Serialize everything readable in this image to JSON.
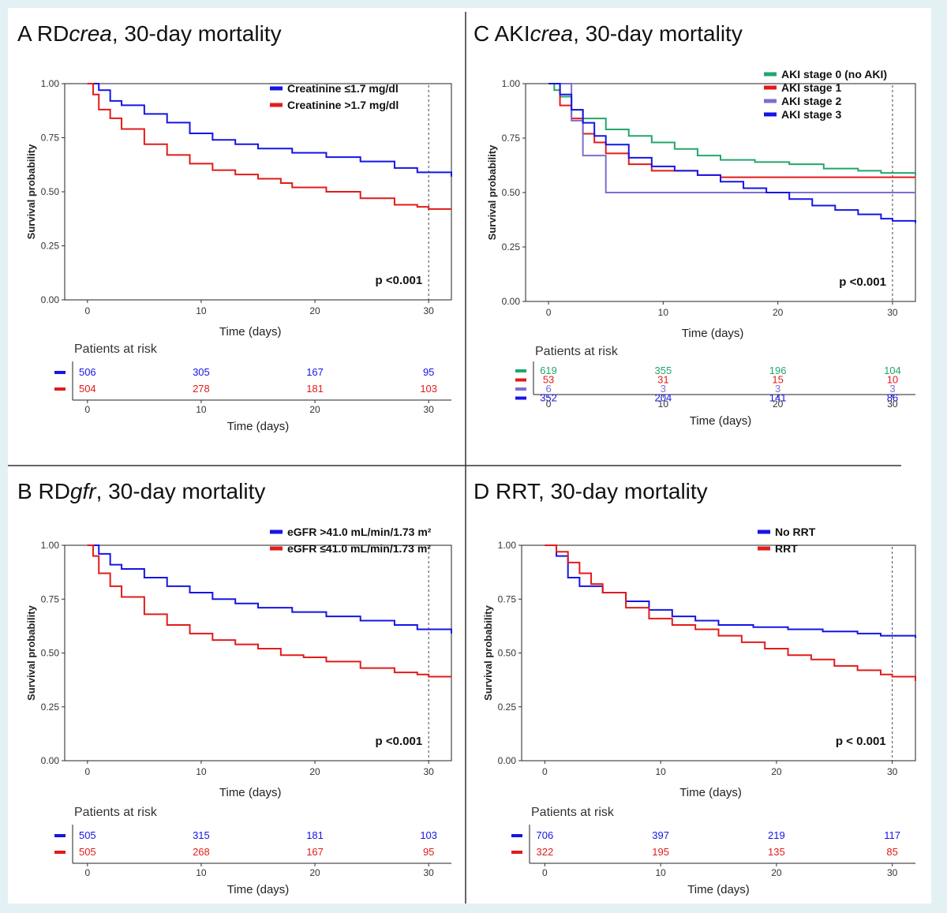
{
  "colors": {
    "blue": "#1515e6",
    "red": "#e21b1b",
    "green": "#23a66b",
    "purple": "#7b6fcf"
  },
  "chart_data": [
    {
      "panel": "A",
      "type": "line",
      "title_prefix": "RD",
      "title_italic": "crea",
      "title_suffix": ", 30-day mortality",
      "xlabel": "Time (days)",
      "ylabel": "Survival probability",
      "xlim": [
        -2,
        32
      ],
      "ylim": [
        0,
        1
      ],
      "xticks": [
        "0",
        "10",
        "20",
        "30"
      ],
      "yticks": [
        "0.00",
        "0.25",
        "0.50",
        "0.75",
        "1.00"
      ],
      "cutoff_day": 30,
      "p_value": "p <0.001",
      "legend_position": "top-right",
      "series": [
        {
          "name": "Creatinine ≤1.7 mg/dl",
          "color": "#1515e6",
          "points": [
            [
              0,
              1.0
            ],
            [
              1,
              0.97
            ],
            [
              2,
              0.92
            ],
            [
              3,
              0.9
            ],
            [
              5,
              0.86
            ],
            [
              7,
              0.82
            ],
            [
              9,
              0.77
            ],
            [
              11,
              0.74
            ],
            [
              13,
              0.72
            ],
            [
              15,
              0.7
            ],
            [
              18,
              0.68
            ],
            [
              21,
              0.66
            ],
            [
              24,
              0.64
            ],
            [
              27,
              0.61
            ],
            [
              29,
              0.59
            ],
            [
              32,
              0.57
            ]
          ]
        },
        {
          "name": "Creatinine >1.7 mg/dl",
          "color": "#e21b1b",
          "points": [
            [
              0,
              1.0
            ],
            [
              0.5,
              0.95
            ],
            [
              1,
              0.88
            ],
            [
              2,
              0.84
            ],
            [
              3,
              0.79
            ],
            [
              5,
              0.72
            ],
            [
              7,
              0.67
            ],
            [
              9,
              0.63
            ],
            [
              11,
              0.6
            ],
            [
              13,
              0.58
            ],
            [
              15,
              0.56
            ],
            [
              17,
              0.54
            ],
            [
              18,
              0.52
            ],
            [
              21,
              0.5
            ],
            [
              24,
              0.47
            ],
            [
              27,
              0.44
            ],
            [
              29,
              0.43
            ],
            [
              30,
              0.42
            ],
            [
              32,
              0.42
            ]
          ]
        }
      ],
      "risk_table": {
        "title": "Patients at risk",
        "xlabel": "Time (days)",
        "rows": [
          {
            "color": "#1515e6",
            "values": [
              "506",
              "305",
              "167",
              "95"
            ]
          },
          {
            "color": "#e21b1b",
            "values": [
              "504",
              "278",
              "181",
              "103"
            ]
          }
        ]
      }
    },
    {
      "panel": "B",
      "type": "line",
      "title_prefix": "RD",
      "title_italic": "gfr",
      "title_suffix": ", 30-day mortality",
      "xlabel": "Time (days)",
      "ylabel": "Survival probability",
      "xlim": [
        -2,
        32
      ],
      "ylim": [
        0,
        1
      ],
      "xticks": [
        "0",
        "10",
        "20",
        "30"
      ],
      "yticks": [
        "0.00",
        "0.25",
        "0.50",
        "0.75",
        "1.00"
      ],
      "cutoff_day": 30,
      "p_value": "p <0.001",
      "legend_position": "top-right",
      "series": [
        {
          "name": "eGFR >41.0 mL/min/1.73 m²",
          "color": "#1515e6",
          "points": [
            [
              0,
              1.0
            ],
            [
              1,
              0.96
            ],
            [
              2,
              0.91
            ],
            [
              3,
              0.89
            ],
            [
              5,
              0.85
            ],
            [
              7,
              0.81
            ],
            [
              9,
              0.78
            ],
            [
              11,
              0.75
            ],
            [
              13,
              0.73
            ],
            [
              15,
              0.71
            ],
            [
              18,
              0.69
            ],
            [
              21,
              0.67
            ],
            [
              24,
              0.65
            ],
            [
              27,
              0.63
            ],
            [
              29,
              0.61
            ],
            [
              32,
              0.59
            ]
          ]
        },
        {
          "name": "eGFR ≤41.0 mL/min/1.73 m²",
          "color": "#e21b1b",
          "points": [
            [
              0,
              1.0
            ],
            [
              0.5,
              0.95
            ],
            [
              1,
              0.87
            ],
            [
              2,
              0.81
            ],
            [
              3,
              0.76
            ],
            [
              5,
              0.68
            ],
            [
              7,
              0.63
            ],
            [
              9,
              0.59
            ],
            [
              11,
              0.56
            ],
            [
              13,
              0.54
            ],
            [
              15,
              0.52
            ],
            [
              17,
              0.49
            ],
            [
              19,
              0.48
            ],
            [
              21,
              0.46
            ],
            [
              24,
              0.43
            ],
            [
              27,
              0.41
            ],
            [
              29,
              0.4
            ],
            [
              30,
              0.39
            ],
            [
              32,
              0.39
            ]
          ]
        }
      ],
      "risk_table": {
        "title": "Patients at risk",
        "xlabel": "Time (days)",
        "rows": [
          {
            "color": "#1515e6",
            "values": [
              "505",
              "315",
              "181",
              "103"
            ]
          },
          {
            "color": "#e21b1b",
            "values": [
              "505",
              "268",
              "167",
              "95"
            ]
          }
        ]
      }
    },
    {
      "panel": "C",
      "type": "line",
      "title_prefix": "AKI",
      "title_italic": "crea",
      "title_suffix": ", 30-day mortality",
      "xlabel": "Time (days)",
      "ylabel": "Survival probability",
      "xlim": [
        -2,
        32
      ],
      "ylim": [
        0,
        1
      ],
      "xticks": [
        "0",
        "10",
        "20",
        "30"
      ],
      "yticks": [
        "0.00",
        "0.25",
        "0.50",
        "0.75",
        "1.00"
      ],
      "cutoff_day": 30,
      "p_value": "p <0.001",
      "legend_position": "top-right",
      "series": [
        {
          "name": "AKI stage 0 (no AKI)",
          "color": "#23a66b",
          "points": [
            [
              0,
              1.0
            ],
            [
              0.5,
              0.97
            ],
            [
              1,
              0.94
            ],
            [
              2,
              0.88
            ],
            [
              3,
              0.84
            ],
            [
              5,
              0.79
            ],
            [
              7,
              0.76
            ],
            [
              9,
              0.73
            ],
            [
              11,
              0.7
            ],
            [
              13,
              0.67
            ],
            [
              15,
              0.65
            ],
            [
              18,
              0.64
            ],
            [
              21,
              0.63
            ],
            [
              24,
              0.61
            ],
            [
              27,
              0.6
            ],
            [
              29,
              0.59
            ],
            [
              32,
              0.58
            ]
          ]
        },
        {
          "name": "AKI stage 1",
          "color": "#e21b1b",
          "points": [
            [
              0,
              1.0
            ],
            [
              1,
              0.9
            ],
            [
              2,
              0.84
            ],
            [
              3,
              0.77
            ],
            [
              4,
              0.73
            ],
            [
              5,
              0.68
            ],
            [
              7,
              0.63
            ],
            [
              9,
              0.6
            ],
            [
              11,
              0.6
            ],
            [
              13,
              0.58
            ],
            [
              15,
              0.57
            ],
            [
              32,
              0.57
            ]
          ]
        },
        {
          "name": "AKI stage 2",
          "color": "#7b6fcf",
          "points": [
            [
              0,
              1.0
            ],
            [
              2,
              1.0
            ],
            [
              2,
              0.83
            ],
            [
              3,
              0.83
            ],
            [
              3,
              0.67
            ],
            [
              5,
              0.67
            ],
            [
              5,
              0.5
            ],
            [
              32,
              0.5
            ]
          ]
        },
        {
          "name": "AKI stage 3",
          "color": "#1515e6",
          "points": [
            [
              0,
              1.0
            ],
            [
              1,
              0.95
            ],
            [
              2,
              0.88
            ],
            [
              3,
              0.82
            ],
            [
              4,
              0.76
            ],
            [
              5,
              0.72
            ],
            [
              7,
              0.66
            ],
            [
              9,
              0.62
            ],
            [
              11,
              0.6
            ],
            [
              13,
              0.58
            ],
            [
              15,
              0.55
            ],
            [
              17,
              0.52
            ],
            [
              19,
              0.5
            ],
            [
              21,
              0.47
            ],
            [
              23,
              0.44
            ],
            [
              25,
              0.42
            ],
            [
              27,
              0.4
            ],
            [
              29,
              0.38
            ],
            [
              30,
              0.37
            ],
            [
              32,
              0.36
            ]
          ]
        }
      ],
      "risk_table": {
        "title": "Patients at risk",
        "xlabel": "Time (days)",
        "rows": [
          {
            "color": "#23a66b",
            "values": [
              "619",
              "355",
              "196",
              "104"
            ]
          },
          {
            "color": "#e21b1b",
            "values": [
              "53",
              "31",
              "15",
              "10"
            ]
          },
          {
            "color": "#7b6fcf",
            "values": [
              "6",
              "3",
              "3",
              "3"
            ]
          },
          {
            "color": "#1515e6",
            "values": [
              "352",
              "204",
              "141",
              "86"
            ]
          }
        ]
      }
    },
    {
      "panel": "D",
      "type": "line",
      "title_prefix": "RRT",
      "title_italic": "",
      "title_suffix": ", 30-day mortality",
      "xlabel": "Time (days)",
      "ylabel": "Survival probability",
      "xlim": [
        -2,
        32
      ],
      "ylim": [
        0,
        1
      ],
      "xticks": [
        "0",
        "10",
        "20",
        "30"
      ],
      "yticks": [
        "0.00",
        "0.25",
        "0.50",
        "0.75",
        "1.00"
      ],
      "cutoff_day": 30,
      "p_value": "p < 0.001",
      "legend_position": "top-right",
      "series": [
        {
          "name": "No RRT",
          "color": "#1515e6",
          "points": [
            [
              0,
              1.0
            ],
            [
              1,
              0.95
            ],
            [
              2,
              0.85
            ],
            [
              3,
              0.81
            ],
            [
              5,
              0.78
            ],
            [
              7,
              0.74
            ],
            [
              9,
              0.7
            ],
            [
              11,
              0.67
            ],
            [
              13,
              0.65
            ],
            [
              15,
              0.63
            ],
            [
              18,
              0.62
            ],
            [
              21,
              0.61
            ],
            [
              24,
              0.6
            ],
            [
              27,
              0.59
            ],
            [
              29,
              0.58
            ],
            [
              32,
              0.57
            ]
          ]
        },
        {
          "name": "RRT",
          "color": "#e21b1b",
          "points": [
            [
              0,
              1.0
            ],
            [
              1,
              0.97
            ],
            [
              2,
              0.92
            ],
            [
              3,
              0.87
            ],
            [
              4,
              0.82
            ],
            [
              5,
              0.78
            ],
            [
              7,
              0.71
            ],
            [
              9,
              0.66
            ],
            [
              11,
              0.63
            ],
            [
              13,
              0.61
            ],
            [
              15,
              0.58
            ],
            [
              17,
              0.55
            ],
            [
              19,
              0.52
            ],
            [
              21,
              0.49
            ],
            [
              23,
              0.47
            ],
            [
              25,
              0.44
            ],
            [
              27,
              0.42
            ],
            [
              29,
              0.4
            ],
            [
              30,
              0.39
            ],
            [
              32,
              0.37
            ]
          ]
        }
      ],
      "risk_table": {
        "title": "Patients at risk",
        "xlabel": "Time (days)",
        "rows": [
          {
            "color": "#1515e6",
            "values": [
              "706",
              "397",
              "219",
              "117"
            ]
          },
          {
            "color": "#e21b1b",
            "values": [
              "322",
              "195",
              "135",
              "85"
            ]
          }
        ]
      }
    }
  ]
}
